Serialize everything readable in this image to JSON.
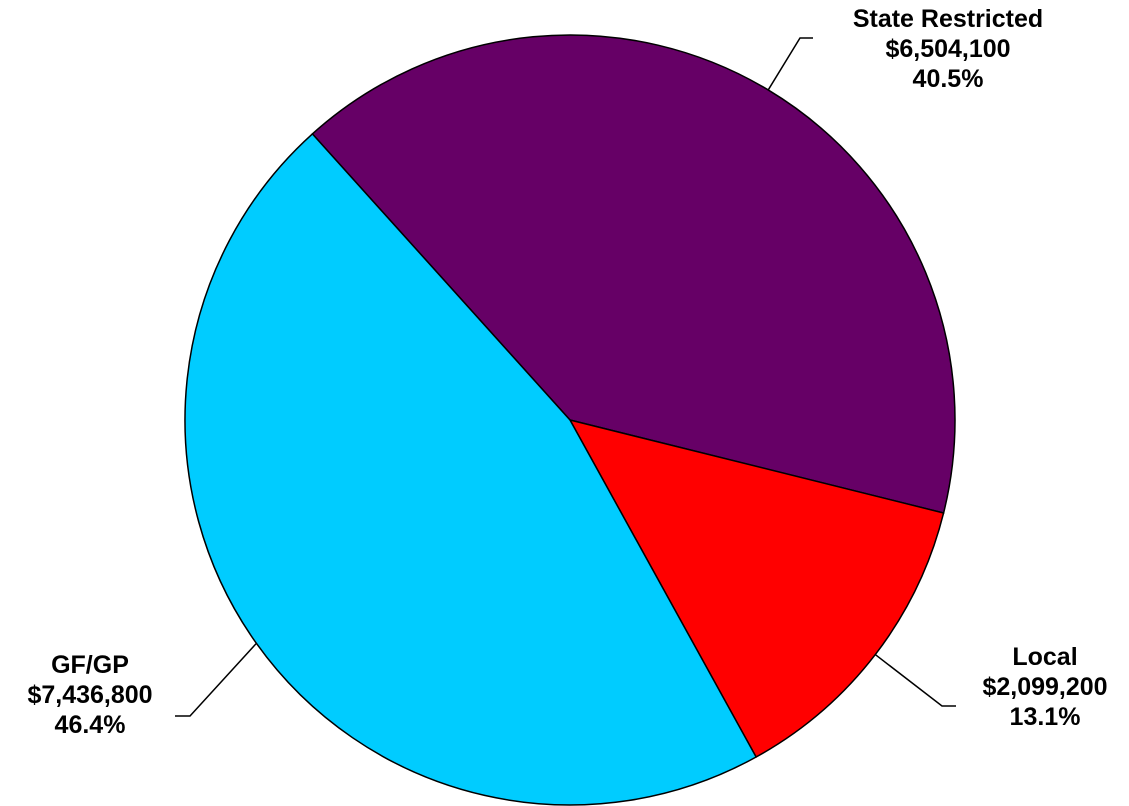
{
  "chart_data": {
    "type": "pie",
    "title": "",
    "slices": [
      {
        "name": "State Restricted",
        "value": 6504100,
        "value_label": "$6,504,100",
        "percent": 40.5,
        "percent_label": "40.5%",
        "color": "#660066"
      },
      {
        "name": "Local",
        "value": 2099200,
        "value_label": "$2,099,200",
        "percent": 13.1,
        "percent_label": "13.1%",
        "color": "#FF0000"
      },
      {
        "name": "GF/GP",
        "value": 7436800,
        "value_label": "$7,436,800",
        "percent": 46.4,
        "percent_label": "46.4%",
        "color": "#00CCFF"
      }
    ],
    "legend": "none",
    "data_labels": "outside with leader lines"
  }
}
